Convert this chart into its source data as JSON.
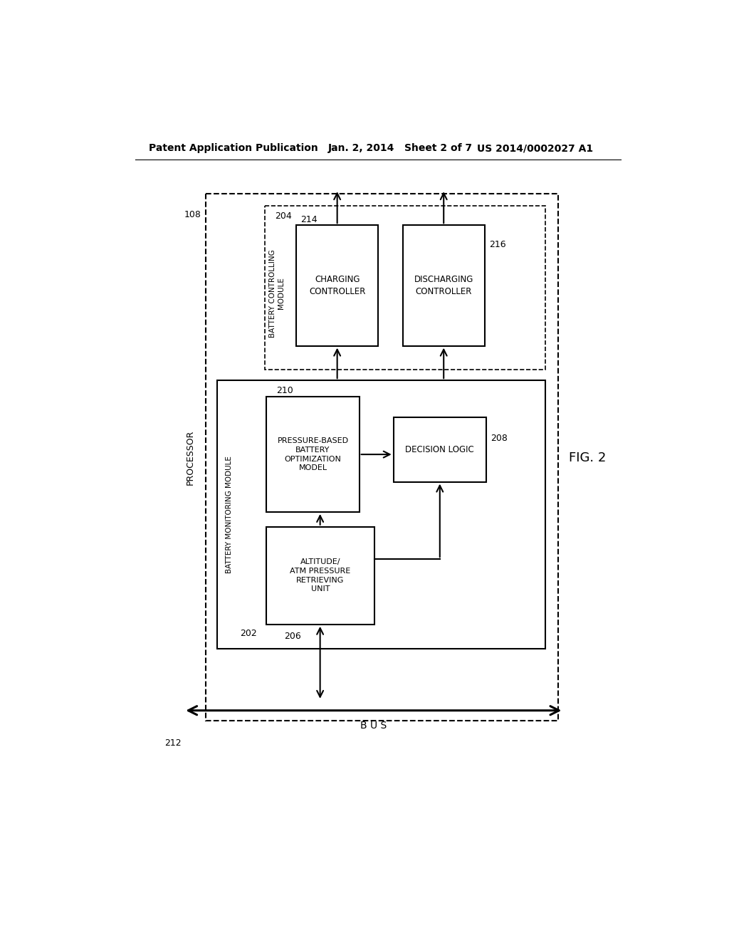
{
  "title_left": "Patent Application Publication",
  "title_center": "Jan. 2, 2014   Sheet 2 of 7",
  "title_right": "US 2014/0002027 A1",
  "fig_label": "FIG. 2",
  "bg_color": "#ffffff",
  "processor_label": "PROCESSOR",
  "label_108": "108",
  "label_202": "202",
  "label_204": "204",
  "label_206": "206",
  "label_208": "208",
  "label_210": "210",
  "label_212": "212",
  "label_214": "214",
  "label_216": "216",
  "box_charging": "CHARGING\nCONTROLLER",
  "box_discharging": "DISCHARGING\nCONTROLLER",
  "box_battery_controlling": "BATTERY CONTROLLING\nMODULE",
  "box_pressure": "PRESSURE-BASED\nBATTERY\nOPTIMIZATION\nMODEL",
  "box_decision": "DECISION LOGIC",
  "box_battery_monitoring": "BATTERY MONITORING MODULE",
  "box_altitude": "ALTITUDE/\nATM PRESSURE\nRETRIEVING\nUNIT",
  "bus_label": "B U S"
}
